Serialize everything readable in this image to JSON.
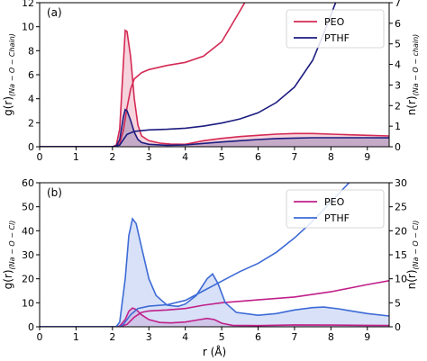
{
  "chart_data": [
    {
      "type": "line",
      "panel_label": "(a)",
      "xlim": [
        0,
        9.6
      ],
      "x_ticks": [
        0,
        1,
        2,
        3,
        4,
        5,
        6,
        7,
        8,
        9
      ],
      "ylim_left": [
        0,
        12
      ],
      "left_ticks": [
        0,
        2,
        4,
        6,
        8,
        10,
        12
      ],
      "ylim_right": [
        0,
        7
      ],
      "right_ticks": [
        0,
        1,
        2,
        3,
        4,
        5,
        6,
        7
      ],
      "ylabel_left": {
        "main": "g(r)",
        "sub": "(Na − O − Chain)"
      },
      "ylabel_right": {
        "main": "n(r)",
        "sub": "(Na − O − chain)"
      },
      "legend": {
        "placement": "top-right",
        "entries": [
          "PEO",
          "PTHF"
        ]
      },
      "series": [
        {
          "name": "PEO",
          "color": "#d42a54",
          "fill": "rgba(212,42,84,0.2)",
          "g": [
            [
              0,
              0
            ],
            [
              2.0,
              0
            ],
            [
              2.1,
              0.05
            ],
            [
              2.2,
              1.5
            ],
            [
              2.3,
              7.0
            ],
            [
              2.35,
              9.7
            ],
            [
              2.4,
              9.6
            ],
            [
              2.5,
              7.5
            ],
            [
              2.6,
              4.0
            ],
            [
              2.7,
              1.8
            ],
            [
              2.8,
              0.9
            ],
            [
              3.0,
              0.5
            ],
            [
              3.3,
              0.3
            ],
            [
              3.6,
              0.22
            ],
            [
              4.0,
              0.2
            ],
            [
              4.5,
              0.5
            ],
            [
              5.0,
              0.7
            ],
            [
              5.5,
              0.85
            ],
            [
              6.0,
              0.95
            ],
            [
              6.5,
              1.05
            ],
            [
              7.0,
              1.1
            ],
            [
              7.5,
              1.1
            ],
            [
              8.0,
              1.05
            ],
            [
              8.5,
              1.0
            ],
            [
              9.0,
              0.95
            ],
            [
              9.6,
              0.9
            ]
          ],
          "n": [
            [
              0,
              0
            ],
            [
              2.0,
              0
            ],
            [
              2.2,
              0.15
            ],
            [
              2.3,
              0.8
            ],
            [
              2.4,
              1.9
            ],
            [
              2.5,
              2.8
            ],
            [
              2.6,
              3.3
            ],
            [
              2.8,
              3.6
            ],
            [
              3.0,
              3.75
            ],
            [
              3.5,
              3.95
            ],
            [
              4.0,
              4.1
            ],
            [
              4.5,
              4.4
            ],
            [
              5.0,
              5.1
            ],
            [
              5.2,
              5.7
            ],
            [
              5.4,
              6.3
            ],
            [
              5.6,
              6.9
            ],
            [
              5.75,
              7.4
            ]
          ]
        },
        {
          "name": "PTHF",
          "color": "#1c1c80",
          "fill": "rgba(28,28,128,0.22)",
          "g": [
            [
              0,
              0
            ],
            [
              2.0,
              0
            ],
            [
              2.1,
              0.05
            ],
            [
              2.2,
              0.6
            ],
            [
              2.3,
              2.5
            ],
            [
              2.35,
              3.1
            ],
            [
              2.4,
              3.0
            ],
            [
              2.5,
              2.2
            ],
            [
              2.6,
              1.2
            ],
            [
              2.7,
              0.6
            ],
            [
              2.8,
              0.35
            ],
            [
              3.0,
              0.2
            ],
            [
              3.5,
              0.12
            ],
            [
              4.0,
              0.15
            ],
            [
              4.5,
              0.28
            ],
            [
              5.0,
              0.4
            ],
            [
              5.5,
              0.5
            ],
            [
              6.0,
              0.6
            ],
            [
              6.5,
              0.68
            ],
            [
              7.0,
              0.72
            ],
            [
              7.5,
              0.75
            ],
            [
              8.0,
              0.75
            ],
            [
              8.5,
              0.75
            ],
            [
              9.0,
              0.75
            ],
            [
              9.6,
              0.74
            ]
          ],
          "n": [
            [
              0,
              0
            ],
            [
              2.0,
              0
            ],
            [
              2.2,
              0.08
            ],
            [
              2.3,
              0.35
            ],
            [
              2.4,
              0.6
            ],
            [
              2.6,
              0.75
            ],
            [
              3.0,
              0.82
            ],
            [
              3.5,
              0.85
            ],
            [
              4.0,
              0.9
            ],
            [
              4.5,
              1.0
            ],
            [
              5.0,
              1.15
            ],
            [
              5.5,
              1.35
            ],
            [
              6.0,
              1.65
            ],
            [
              6.5,
              2.15
            ],
            [
              7.0,
              2.9
            ],
            [
              7.5,
              4.2
            ],
            [
              7.8,
              5.5
            ],
            [
              8.0,
              6.4
            ],
            [
              8.15,
              7.1
            ]
          ]
        }
      ]
    },
    {
      "type": "line",
      "panel_label": "(b)",
      "xlim": [
        0,
        9.6
      ],
      "x_ticks": [
        0,
        1,
        2,
        3,
        4,
        5,
        6,
        7,
        8,
        9
      ],
      "xlabel": "r (Å)",
      "ylim_left": [
        0,
        60
      ],
      "left_ticks": [
        0,
        10,
        20,
        30,
        40,
        50,
        60
      ],
      "ylim_right": [
        0,
        30
      ],
      "right_ticks": [
        0,
        5,
        10,
        15,
        20,
        25,
        30
      ],
      "ylabel_left": {
        "main": "g(r)",
        "sub": "(Na − O − Cl)"
      },
      "ylabel_right": {
        "main": "n(r)",
        "sub": "(Na − O − Cl)"
      },
      "legend": {
        "placement": "top-right",
        "entries": [
          "PEO",
          "PTHF"
        ]
      },
      "series": [
        {
          "name": "PEO",
          "color": "#c0208a",
          "fill": "rgba(192,32,138,0.15)",
          "g": [
            [
              0,
              0
            ],
            [
              2.1,
              0
            ],
            [
              2.2,
              0.3
            ],
            [
              2.35,
              3.0
            ],
            [
              2.45,
              6.5
            ],
            [
              2.55,
              7.8
            ],
            [
              2.65,
              7.2
            ],
            [
              2.8,
              5.0
            ],
            [
              3.0,
              3.0
            ],
            [
              3.3,
              1.8
            ],
            [
              3.6,
              1.6
            ],
            [
              4.0,
              2.0
            ],
            [
              4.4,
              3.0
            ],
            [
              4.6,
              3.5
            ],
            [
              4.8,
              3.0
            ],
            [
              5.0,
              1.5
            ],
            [
              5.3,
              0.6
            ],
            [
              6.0,
              0.5
            ],
            [
              7.0,
              0.8
            ],
            [
              8.0,
              0.7
            ],
            [
              9.0,
              0.6
            ],
            [
              9.6,
              0.55
            ]
          ],
          "n": [
            [
              0,
              0
            ],
            [
              2.2,
              0
            ],
            [
              2.4,
              0.5
            ],
            [
              2.6,
              2.0
            ],
            [
              2.8,
              3.0
            ],
            [
              3.0,
              3.3
            ],
            [
              3.5,
              3.5
            ],
            [
              4.0,
              3.8
            ],
            [
              4.5,
              4.5
            ],
            [
              5.0,
              5.0
            ],
            [
              5.5,
              5.3
            ],
            [
              6.0,
              5.6
            ],
            [
              7.0,
              6.2
            ],
            [
              8.0,
              7.3
            ],
            [
              9.0,
              8.8
            ],
            [
              9.6,
              9.6
            ]
          ]
        },
        {
          "name": "PTHF",
          "color": "#3d6ad6",
          "fill": "rgba(61,106,214,0.2)",
          "g": [
            [
              0,
              0
            ],
            [
              2.1,
              0
            ],
            [
              2.2,
              2.0
            ],
            [
              2.35,
              20.0
            ],
            [
              2.45,
              38.0
            ],
            [
              2.55,
              45.0
            ],
            [
              2.65,
              43.0
            ],
            [
              2.8,
              33.0
            ],
            [
              3.0,
              20.0
            ],
            [
              3.2,
              13.0
            ],
            [
              3.5,
              9.0
            ],
            [
              3.8,
              8.5
            ],
            [
              4.0,
              9.5
            ],
            [
              4.3,
              13.0
            ],
            [
              4.6,
              20.0
            ],
            [
              4.75,
              22.0
            ],
            [
              4.9,
              18.0
            ],
            [
              5.1,
              10.0
            ],
            [
              5.4,
              6.0
            ],
            [
              6.0,
              4.8
            ],
            [
              6.5,
              5.5
            ],
            [
              7.0,
              7.0
            ],
            [
              7.5,
              8.0
            ],
            [
              7.8,
              8.2
            ],
            [
              8.2,
              7.5
            ],
            [
              8.6,
              6.5
            ],
            [
              9.0,
              5.5
            ],
            [
              9.6,
              4.5
            ]
          ],
          "n": [
            [
              0,
              0
            ],
            [
              2.2,
              0
            ],
            [
              2.3,
              0.5
            ],
            [
              2.5,
              2.5
            ],
            [
              2.7,
              3.8
            ],
            [
              3.0,
              4.3
            ],
            [
              3.5,
              4.6
            ],
            [
              4.0,
              5.5
            ],
            [
              4.5,
              7.5
            ],
            [
              5.0,
              9.5
            ],
            [
              5.5,
              11.5
            ],
            [
              6.0,
              13.2
            ],
            [
              6.5,
              15.5
            ],
            [
              7.0,
              18.5
            ],
            [
              7.5,
              22.0
            ],
            [
              8.0,
              26.0
            ],
            [
              8.5,
              30.0
            ]
          ]
        }
      ]
    }
  ]
}
